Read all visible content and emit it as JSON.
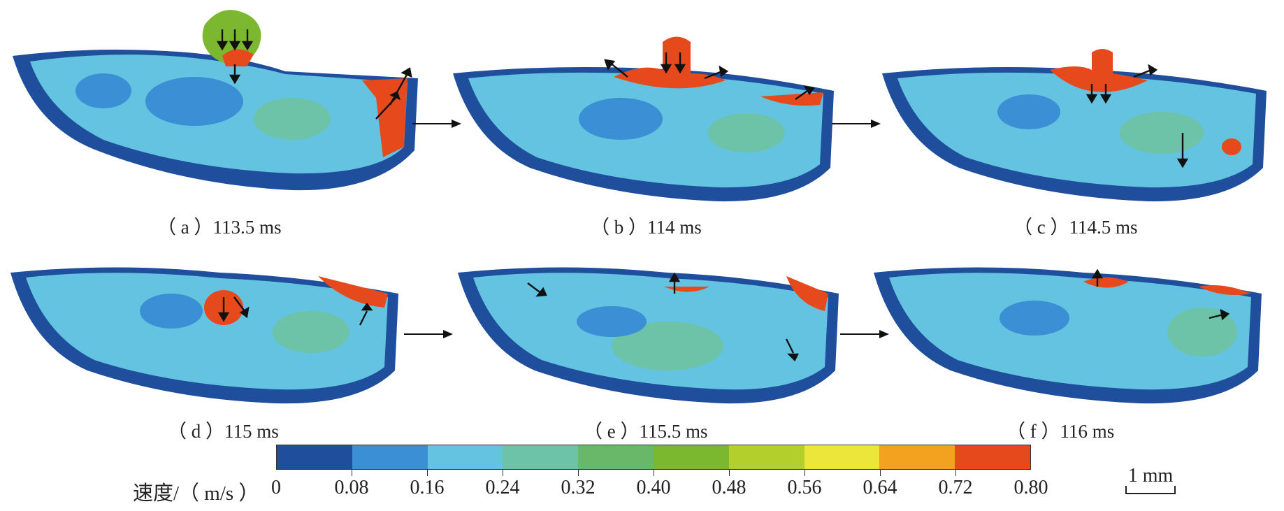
{
  "panels": [
    {
      "id": "a",
      "caption": "（ a ）113.5 ms"
    },
    {
      "id": "b",
      "caption": "（ b ）114 ms"
    },
    {
      "id": "c",
      "caption": "（ c ）114.5 ms"
    },
    {
      "id": "d",
      "caption": "（ d ）115 ms"
    },
    {
      "id": "e",
      "caption": "（ e ）115.5 ms"
    },
    {
      "id": "f",
      "caption": "（ f ）116 ms"
    }
  ],
  "colorbar": {
    "title": "速度/（ m/s ）",
    "tick_labels": [
      "0",
      "0.08",
      "0.16",
      "0.24",
      "0.32",
      "0.40",
      "0.48",
      "0.56",
      "0.64",
      "0.72",
      "0.80"
    ],
    "colors": [
      "#1f4e9c",
      "#3b8fd4",
      "#63c3e0",
      "#6cc3a8",
      "#69b86a",
      "#7cb82f",
      "#b3cf2b",
      "#ece53a",
      "#f2a21e",
      "#e64a1c"
    ]
  },
  "scale_bar": {
    "label": "1 mm"
  }
}
